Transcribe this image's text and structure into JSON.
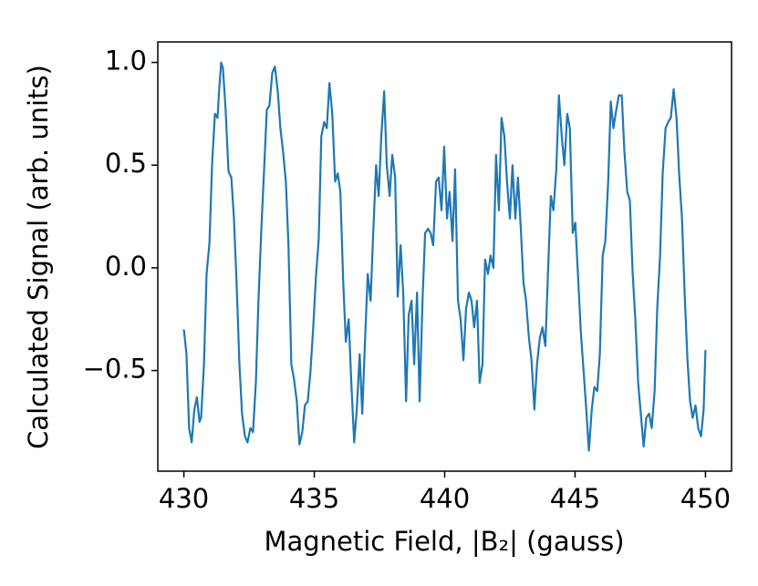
{
  "chart_data": {
    "type": "line",
    "xlabel": "Magnetic Field, |B₂| (gauss)",
    "ylabel": "Calculated Signal (arb. units)",
    "xlim": [
      429,
      451
    ],
    "ylim": [
      -0.99,
      1.1
    ],
    "xticks": [
      430,
      435,
      440,
      445,
      450
    ],
    "yticks": [
      {
        "value": -0.5,
        "label": "−0.5"
      },
      {
        "value": 0,
        "label": "0.0"
      },
      {
        "value": 0.5,
        "label": "0.5"
      },
      {
        "value": 1,
        "label": "1.0"
      }
    ],
    "grid": false,
    "series": [
      {
        "color": "#1f77b4",
        "x": [
          430.0,
          430.1,
          430.2,
          430.3,
          430.4,
          430.5,
          430.6,
          430.66,
          430.77,
          430.87,
          430.98,
          431.08,
          431.19,
          431.29,
          431.36,
          431.43,
          431.5,
          431.6,
          431.71,
          431.82,
          431.92,
          432.02,
          432.13,
          432.23,
          432.34,
          432.44,
          432.55,
          432.65,
          432.76,
          432.86,
          432.97,
          433.07,
          433.18,
          433.28,
          433.39,
          433.49,
          433.6,
          433.7,
          433.8,
          433.91,
          434.01,
          434.12,
          434.22,
          434.33,
          434.43,
          434.54,
          434.64,
          434.75,
          434.85,
          434.96,
          435.06,
          435.17,
          435.27,
          435.38,
          435.48,
          435.58,
          435.69,
          435.8,
          435.9,
          436.0,
          436.11,
          436.21,
          436.32,
          436.42,
          436.53,
          436.63,
          436.74,
          436.84,
          436.95,
          437.05,
          437.16,
          437.26,
          437.37,
          437.47,
          437.57,
          437.68,
          437.78,
          437.89,
          437.99,
          438.1,
          438.2,
          438.31,
          438.41,
          438.52,
          438.62,
          438.73,
          438.83,
          438.94,
          439.04,
          439.15,
          439.25,
          439.36,
          439.46,
          439.56,
          439.67,
          439.77,
          439.88,
          439.98,
          440.09,
          440.19,
          440.3,
          440.4,
          440.51,
          440.61,
          440.72,
          440.82,
          440.93,
          441.03,
          441.13,
          441.24,
          441.34,
          441.45,
          441.55,
          441.66,
          441.76,
          441.87,
          441.97,
          442.08,
          442.18,
          442.29,
          442.39,
          442.5,
          442.6,
          442.71,
          442.81,
          442.92,
          443.02,
          443.12,
          443.23,
          443.33,
          443.44,
          443.54,
          443.65,
          443.75,
          443.86,
          443.96,
          444.07,
          444.17,
          444.28,
          444.38,
          444.49,
          444.59,
          444.7,
          444.8,
          444.91,
          445.01,
          445.11,
          445.22,
          445.32,
          445.43,
          445.53,
          445.64,
          445.74,
          445.85,
          445.95,
          446.06,
          446.16,
          446.27,
          446.37,
          446.47,
          446.58,
          446.68,
          446.79,
          446.89,
          447.0,
          447.1,
          447.21,
          447.31,
          447.42,
          447.52,
          447.63,
          447.73,
          447.84,
          447.94,
          448.05,
          448.15,
          448.26,
          448.36,
          448.47,
          448.57,
          448.67,
          448.78,
          448.89,
          448.99,
          449.1,
          449.2,
          449.31,
          449.41,
          449.51,
          449.62,
          449.72,
          449.83,
          449.93,
          450.0
        ],
        "values": [
          -0.3,
          -0.42,
          -0.78,
          -0.85,
          -0.69,
          -0.63,
          -0.75,
          -0.73,
          -0.47,
          -0.03,
          0.12,
          0.5,
          0.75,
          0.73,
          0.88,
          1.0,
          0.97,
          0.77,
          0.47,
          0.44,
          0.24,
          -0.07,
          -0.47,
          -0.71,
          -0.82,
          -0.85,
          -0.78,
          -0.8,
          -0.56,
          -0.16,
          0.19,
          0.46,
          0.77,
          0.79,
          0.95,
          0.98,
          0.86,
          0.68,
          0.57,
          0.42,
          0.11,
          -0.47,
          -0.54,
          -0.65,
          -0.86,
          -0.8,
          -0.67,
          -0.65,
          -0.51,
          -0.29,
          -0.05,
          0.14,
          0.64,
          0.71,
          0.68,
          0.9,
          0.75,
          0.42,
          0.46,
          0.37,
          -0.07,
          -0.36,
          -0.25,
          -0.56,
          -0.85,
          -0.69,
          -0.42,
          -0.71,
          -0.34,
          -0.03,
          -0.16,
          0.17,
          0.5,
          0.35,
          0.64,
          0.86,
          0.5,
          0.35,
          0.55,
          0.44,
          -0.14,
          0.11,
          -0.12,
          -0.65,
          -0.23,
          -0.16,
          -0.47,
          -0.12,
          -0.65,
          -0.16,
          0.17,
          0.19,
          0.17,
          0.11,
          0.42,
          0.44,
          0.28,
          0.59,
          0.24,
          0.37,
          0.13,
          0.48,
          -0.16,
          -0.25,
          -0.45,
          -0.2,
          -0.12,
          -0.16,
          -0.29,
          -0.16,
          -0.56,
          -0.47,
          0.04,
          -0.03,
          0.06,
          0.0,
          0.55,
          0.28,
          0.73,
          0.64,
          0.42,
          0.24,
          0.5,
          0.24,
          0.44,
          0.19,
          -0.07,
          -0.16,
          -0.34,
          -0.45,
          -0.69,
          -0.47,
          -0.34,
          -0.29,
          -0.38,
          -0.03,
          0.35,
          0.28,
          0.48,
          0.84,
          0.64,
          0.5,
          0.75,
          0.68,
          0.17,
          0.22,
          -0.03,
          -0.31,
          -0.49,
          -0.69,
          -0.89,
          -0.69,
          -0.58,
          -0.6,
          -0.42,
          0.06,
          0.13,
          0.42,
          0.81,
          0.68,
          0.77,
          0.84,
          0.84,
          0.57,
          0.37,
          0.33,
          -0.03,
          -0.25,
          -0.56,
          -0.71,
          -0.87,
          -0.73,
          -0.71,
          -0.78,
          -0.6,
          -0.2,
          0.06,
          0.46,
          0.68,
          0.71,
          0.73,
          0.87,
          0.73,
          0.46,
          0.24,
          -0.12,
          -0.45,
          -0.65,
          -0.73,
          -0.67,
          -0.78,
          -0.82,
          -0.69,
          -0.4
        ]
      }
    ]
  }
}
